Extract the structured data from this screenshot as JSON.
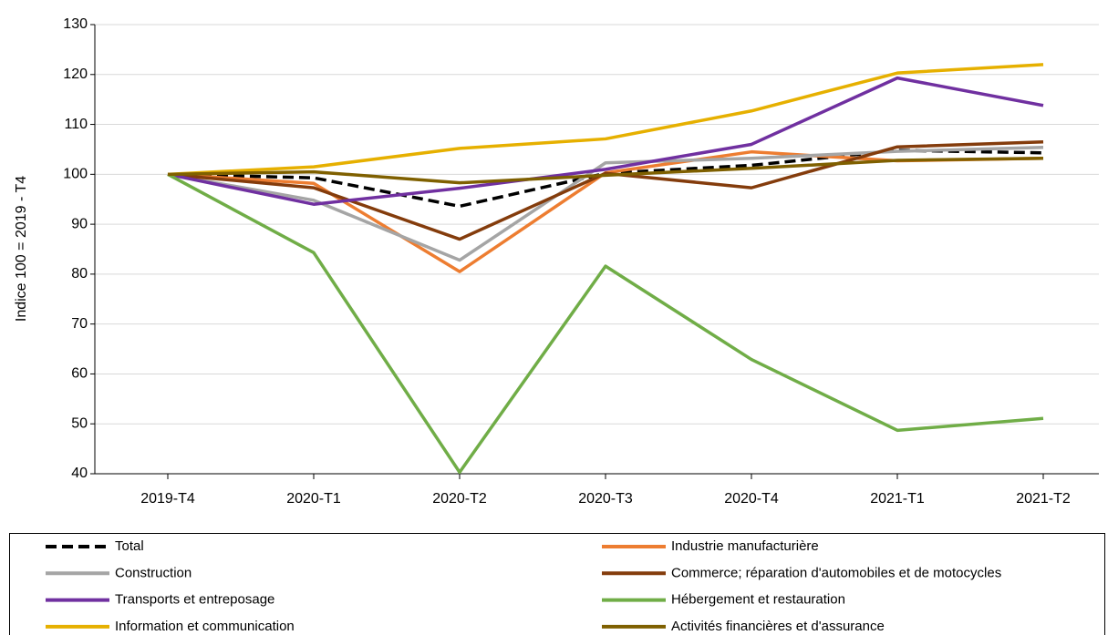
{
  "chart_data": {
    "type": "line",
    "y_label": "Indice 100 = 2019 - T4",
    "categories": [
      "2019-T4",
      "2020-T1",
      "2020-T2",
      "2020-T3",
      "2020-T4",
      "2021-T1",
      "2021-T2"
    ],
    "ylim": [
      40,
      130
    ],
    "yticks": [
      40,
      50,
      60,
      70,
      80,
      90,
      100,
      110,
      120,
      130
    ],
    "grid": true,
    "legend": "bottom",
    "series": [
      {
        "name": "Total",
        "color": "#000000",
        "dashed": true,
        "values": [
          100,
          99.3,
          93.6,
          100.2,
          101.8,
          104.8,
          104.3
        ]
      },
      {
        "name": "Industrie manufacturière",
        "color": "#ED7D31",
        "values": [
          100,
          98.2,
          80.5,
          100.3,
          104.5,
          102.7,
          103.2
        ]
      },
      {
        "name": "Construction",
        "color": "#A5A5A5",
        "values": [
          100,
          94.8,
          82.8,
          102.3,
          103.2,
          104.6,
          105.4
        ]
      },
      {
        "name": "Commerce; réparation d'automobiles et de motocycles",
        "color": "#843C0C",
        "values": [
          100,
          97.3,
          87,
          100.2,
          97.3,
          105.5,
          106.5
        ]
      },
      {
        "name": "Transports et entreposage",
        "color": "#7030A0",
        "values": [
          100,
          94,
          97.2,
          101,
          106,
          119.3,
          113.8
        ]
      },
      {
        "name": "Hébergement et restauration",
        "color": "#70AD47",
        "values": [
          100,
          84.3,
          40.3,
          81.6,
          62.9,
          48.7,
          51.1
        ]
      },
      {
        "name": "Information et communication",
        "color": "#E6B000",
        "values": [
          100,
          101.5,
          105.2,
          107.1,
          112.7,
          120.3,
          122
        ]
      },
      {
        "name": "Activités financières et d'assurance",
        "color": "#7F6000",
        "values": [
          100,
          100.5,
          98.3,
          99.8,
          101.2,
          102.8,
          103.2
        ]
      }
    ]
  }
}
